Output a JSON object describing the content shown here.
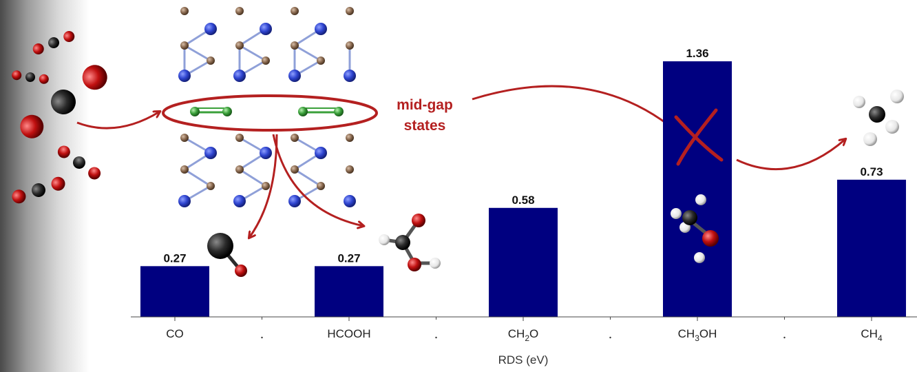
{
  "chart_data": {
    "type": "bar",
    "categories": [
      "CO",
      "HCOOH",
      "CH2O",
      "CH3OH",
      "CH4"
    ],
    "category_display": [
      {
        "base": "CO",
        "sub": "",
        "tail": ""
      },
      {
        "base": "HCOOH",
        "sub": "",
        "tail": ""
      },
      {
        "base": "CH",
        "sub": "2",
        "tail": "O"
      },
      {
        "base": "CH",
        "sub": "3",
        "tail": "OH"
      },
      {
        "base": "CH",
        "sub": "4",
        "tail": ""
      }
    ],
    "values": [
      0.27,
      0.27,
      0.58,
      1.36,
      0.73
    ],
    "value_labels": [
      "0.27",
      "0.27",
      "0.58",
      "1.36",
      "0.73"
    ],
    "xlabel": "RDS (eV)",
    "ylabel": "",
    "ylim": [
      0,
      1.36
    ],
    "bar_color": "#000080",
    "grid": false,
    "y_axis_visible": false
  },
  "annotation": {
    "mid_gap_line1": "mid-gap",
    "mid_gap_line2": "states",
    "annotation_color": "#b42020",
    "blocked_product": "CH3OH"
  },
  "colors": {
    "oxygen": "#c01010",
    "carbon": "#2b2b2b",
    "hydrogen": "#eeeeee",
    "nitrogen": "#3a4fd8",
    "boron": "#8a6a50",
    "defect_carbon": "#3aa03a"
  }
}
